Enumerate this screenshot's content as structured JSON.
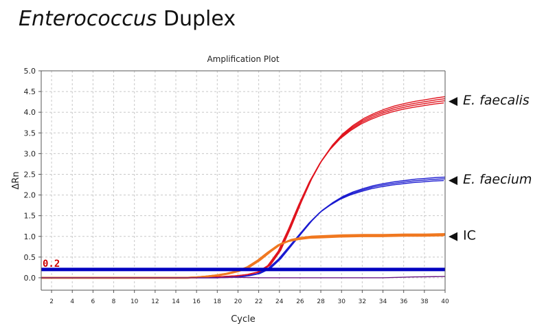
{
  "page": {
    "heading_italic": "Enterococcus",
    "heading_rest": " Duplex"
  },
  "chart_data": {
    "type": "line",
    "title": "Amplification Plot",
    "xlabel": "Cycle",
    "ylabel": "ΔRn",
    "xlim": [
      1,
      40
    ],
    "ylim": [
      -0.3,
      5.0
    ],
    "x_ticks": [
      2,
      4,
      6,
      8,
      10,
      12,
      14,
      16,
      18,
      20,
      22,
      24,
      26,
      28,
      30,
      32,
      34,
      36,
      38,
      40
    ],
    "y_ticks": [
      0.0,
      0.5,
      1.0,
      1.5,
      2.0,
      2.5,
      3.0,
      3.5,
      4.0,
      4.5,
      5.0
    ],
    "y_tick_labels": [
      "0.0",
      "0.5",
      "1.0",
      "1.5",
      "2.0",
      "2.5",
      "3.0",
      "3.5",
      "4.0",
      "4.5",
      "5.0"
    ],
    "grid": true,
    "threshold": {
      "value": 0.2,
      "label": "0.2",
      "color": "#0000c0"
    },
    "series": [
      {
        "name": "E. faecalis",
        "color": "#e0141e",
        "replicates": 4,
        "x": [
          1,
          5,
          10,
          15,
          18,
          20,
          21,
          22,
          23,
          24,
          25,
          26,
          27,
          28,
          29,
          30,
          31,
          32,
          33,
          34,
          35,
          36,
          37,
          38,
          39,
          40
        ],
        "y": [
          0.0,
          0.0,
          0.0,
          0.0,
          0.02,
          0.05,
          0.08,
          0.14,
          0.3,
          0.65,
          1.2,
          1.8,
          2.35,
          2.8,
          3.15,
          3.42,
          3.62,
          3.78,
          3.9,
          4.0,
          4.08,
          4.14,
          4.19,
          4.23,
          4.27,
          4.3
        ]
      },
      {
        "name": "E. faecium",
        "color": "#1a1ad0",
        "replicates": 3,
        "x": [
          1,
          5,
          10,
          15,
          18,
          20,
          21,
          22,
          23,
          24,
          25,
          26,
          27,
          28,
          29,
          30,
          31,
          32,
          33,
          34,
          35,
          36,
          37,
          38,
          39,
          40
        ],
        "y": [
          0.0,
          0.0,
          0.0,
          0.0,
          0.0,
          0.02,
          0.05,
          0.1,
          0.22,
          0.45,
          0.75,
          1.05,
          1.35,
          1.6,
          1.78,
          1.93,
          2.04,
          2.12,
          2.19,
          2.24,
          2.28,
          2.31,
          2.34,
          2.36,
          2.38,
          2.39
        ]
      },
      {
        "name": "IC",
        "color": "#f07820",
        "replicates": 4,
        "x": [
          1,
          5,
          10,
          15,
          16,
          17,
          18,
          19,
          20,
          21,
          22,
          23,
          24,
          25,
          26,
          27,
          28,
          30,
          32,
          34,
          36,
          38,
          40
        ],
        "y": [
          0.0,
          0.0,
          0.0,
          0.0,
          0.01,
          0.03,
          0.06,
          0.1,
          0.16,
          0.26,
          0.42,
          0.62,
          0.8,
          0.9,
          0.95,
          0.98,
          0.99,
          1.01,
          1.02,
          1.02,
          1.03,
          1.03,
          1.04
        ]
      },
      {
        "color": "#6a1880",
        "replicates": 1,
        "x": [
          1,
          10,
          16,
          18,
          20,
          22,
          26,
          30,
          34,
          37,
          40
        ],
        "y": [
          0.0,
          0.0,
          0.0,
          0.0,
          0.01,
          0.0,
          0.0,
          0.0,
          0.0,
          0.02,
          0.03
        ]
      }
    ],
    "annotations": [
      {
        "marker": "◀",
        "text": "E. faecalis",
        "italic": true,
        "color": "#111111",
        "series": 0
      },
      {
        "marker": "◀",
        "text": "E. faecium",
        "italic": true,
        "color": "#111111",
        "series": 1
      },
      {
        "marker": "◀",
        "text": "IC",
        "italic": false,
        "color": "#111111",
        "series": 2
      }
    ],
    "colors": {
      "axis": "#555555",
      "grid": "#c8c8c8",
      "text": "#222222",
      "threshold_label": "#cc0000"
    }
  }
}
